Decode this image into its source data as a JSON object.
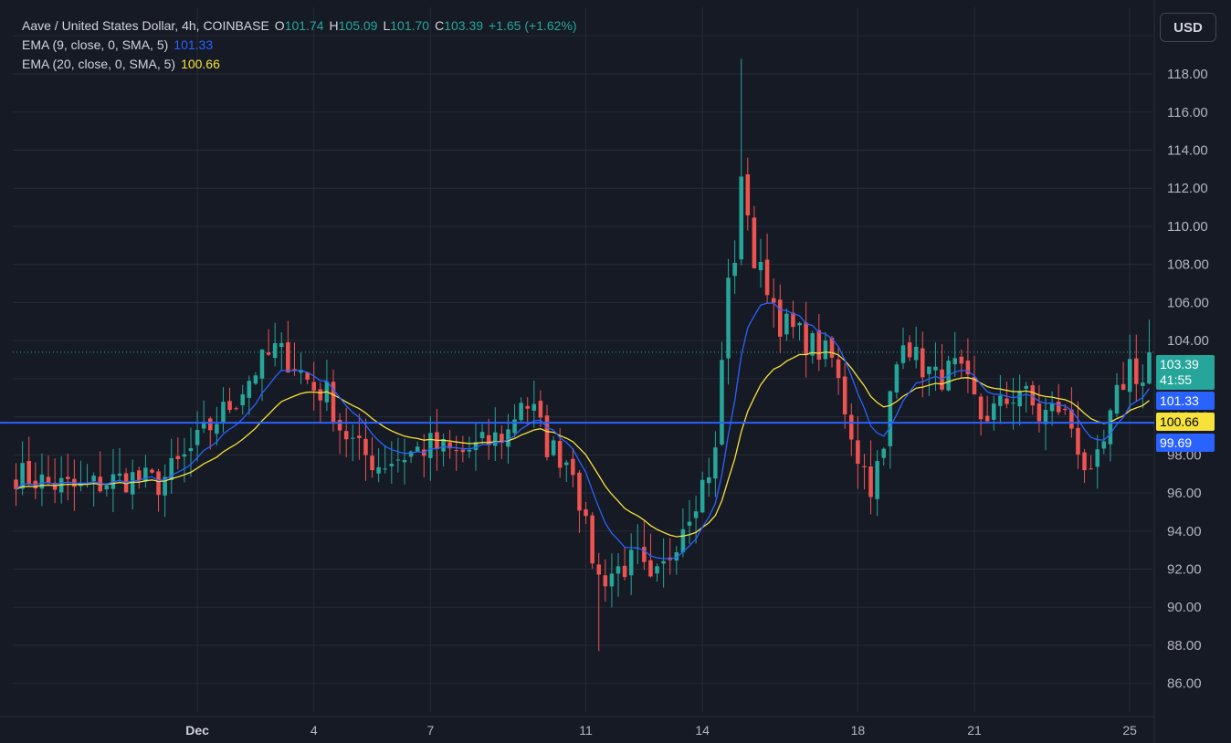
{
  "header": {
    "symbol": "Aave / United States Dollar, 4h, COINBASE",
    "o_label": "O",
    "o_value": "101.74",
    "h_label": "H",
    "h_value": "105.09",
    "l_label": "L",
    "l_value": "101.70",
    "c_label": "C",
    "c_value": "103.39",
    "change": "+1.65 (+1.62%)"
  },
  "indicators": [
    {
      "label": "EMA (9, close, 0, SMA, 5)",
      "value": "101.33",
      "color": "#2962ff"
    },
    {
      "label": "EMA (20, close, 0, SMA, 5)",
      "value": "100.66",
      "color": "#f7e23b"
    }
  ],
  "currency_button": "USD",
  "price_tags": {
    "last_price": "103.39",
    "countdown": "41:55",
    "ema9": "101.33",
    "ema20": "100.66",
    "hline": "99.69"
  },
  "colors": {
    "up": "#26a69a",
    "down": "#ef5350",
    "ema9": "#2962ff",
    "ema20": "#f7e23b",
    "hline": "#2962ff",
    "background": "#161a25",
    "grid": "#262b36"
  },
  "chart_data": {
    "type": "candlestick",
    "ylim": [
      84.5,
      121.5
    ],
    "y_ticks": [
      86,
      88,
      90,
      92,
      94,
      96,
      98,
      100,
      102,
      104,
      106,
      108,
      110,
      112,
      114,
      116,
      118,
      120
    ],
    "x_ticks": [
      {
        "label": "Dec",
        "bar": 28,
        "bold": true
      },
      {
        "label": "4",
        "bar": 46,
        "bold": false
      },
      {
        "label": "7",
        "bar": 64,
        "bold": false
      },
      {
        "label": "11",
        "bar": 88,
        "bold": false
      },
      {
        "label": "14",
        "bar": 106,
        "bold": false
      },
      {
        "label": "18",
        "bar": 130,
        "bold": false
      },
      {
        "label": "21",
        "bar": 148,
        "bold": false
      },
      {
        "label": "25",
        "bar": 172,
        "bold": false
      }
    ],
    "hline": 99.69,
    "series": [
      {
        "name": "EMA (9, close, 0, SMA, 5)",
        "ref": "ema9"
      },
      {
        "name": "EMA (20, close, 0, SMA, 5)",
        "ref": "ema20"
      }
    ],
    "anchors": [
      [
        0,
        97.0
      ],
      [
        5,
        96.5
      ],
      [
        10,
        96.2
      ],
      [
        14,
        96.6
      ],
      [
        18,
        96.8
      ],
      [
        22,
        96.5
      ],
      [
        26,
        97.8
      ],
      [
        30,
        99.5
      ],
      [
        34,
        101.0
      ],
      [
        37,
        102.5
      ],
      [
        40,
        103.5
      ],
      [
        43,
        102.8
      ],
      [
        46,
        101.5
      ],
      [
        48,
        101.2
      ],
      [
        50,
        99.5
      ],
      [
        53,
        98.2
      ],
      [
        56,
        97.5
      ],
      [
        60,
        98.0
      ],
      [
        64,
        98.5
      ],
      [
        68,
        98.0
      ],
      [
        72,
        98.5
      ],
      [
        76,
        99.2
      ],
      [
        78,
        101.0
      ],
      [
        80,
        100.2
      ],
      [
        82,
        98.5
      ],
      [
        86,
        97.5
      ],
      [
        88,
        94.0
      ],
      [
        90,
        91.5
      ],
      [
        93,
        92.0
      ],
      [
        96,
        92.5
      ],
      [
        98,
        91.0
      ],
      [
        100,
        92.0
      ],
      [
        103,
        94.5
      ],
      [
        106,
        96.5
      ],
      [
        108,
        98.0
      ],
      [
        109,
        103.0
      ],
      [
        110,
        107.0
      ],
      [
        111,
        108.5
      ],
      [
        112,
        112.0
      ],
      [
        113,
        111.0
      ],
      [
        114,
        108.0
      ],
      [
        116,
        107.0
      ],
      [
        118,
        105.0
      ],
      [
        122,
        104.0
      ],
      [
        126,
        103.0
      ],
      [
        128,
        100.5
      ],
      [
        130,
        98.0
      ],
      [
        132,
        96.5
      ],
      [
        134,
        98.0
      ],
      [
        135,
        101.0
      ],
      [
        137,
        104.5
      ],
      [
        139,
        103.0
      ],
      [
        142,
        102.0
      ],
      [
        145,
        102.5
      ],
      [
        147,
        101.5
      ],
      [
        149,
        100.0
      ],
      [
        152,
        100.5
      ],
      [
        155,
        101.5
      ],
      [
        158,
        100.0
      ],
      [
        161,
        100.5
      ],
      [
        163,
        99.5
      ],
      [
        166,
        96.5
      ],
      [
        168,
        98.5
      ],
      [
        170,
        101.0
      ],
      [
        172,
        102.8
      ],
      [
        174,
        101.8
      ],
      [
        175,
        103.39
      ]
    ]
  }
}
